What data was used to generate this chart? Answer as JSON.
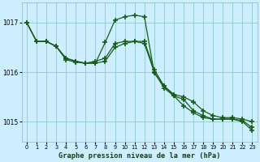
{
  "title": "Graphe pression niveau de la mer (hPa)",
  "bg_color": "#cceeff",
  "grid_color": "#99cccc",
  "line_color": "#1a5c1a",
  "xlim": [
    -0.5,
    23.5
  ],
  "ylim": [
    1014.6,
    1017.4
  ],
  "yticks": [
    1015,
    1016,
    1017
  ],
  "xticks": [
    0,
    1,
    2,
    3,
    4,
    5,
    6,
    7,
    8,
    9,
    10,
    11,
    12,
    13,
    14,
    15,
    16,
    17,
    18,
    19,
    20,
    21,
    22,
    23
  ],
  "series1": [
    1017.0,
    1016.62,
    1016.62,
    1016.52,
    1016.28,
    1016.22,
    1016.18,
    1016.18,
    1016.6,
    1017.05,
    1017.12,
    1017.15,
    1017.12,
    1015.98,
    1015.72,
    1015.52,
    1015.32,
    1015.18,
    1015.08,
    1015.05,
    1015.05,
    1015.05,
    1015.0,
    1014.82
  ],
  "series2": [
    1017.0,
    1016.62,
    1016.62,
    1016.52,
    1016.28,
    1016.22,
    1016.18,
    1016.22,
    1016.28,
    1016.58,
    1016.62,
    1016.62,
    1016.62,
    1016.05,
    1015.72,
    1015.55,
    1015.5,
    1015.4,
    1015.22,
    1015.12,
    1015.08,
    1015.08,
    1015.05,
    1015.0
  ],
  "series3": [
    1017.0,
    1016.62,
    1016.62,
    1016.52,
    1016.25,
    1016.2,
    1016.18,
    1016.18,
    1016.22,
    1016.5,
    1016.58,
    1016.62,
    1016.58,
    1016.0,
    1015.68,
    1015.52,
    1015.45,
    1015.22,
    1015.12,
    1015.05,
    1015.05,
    1015.05,
    1015.02,
    1014.88
  ]
}
